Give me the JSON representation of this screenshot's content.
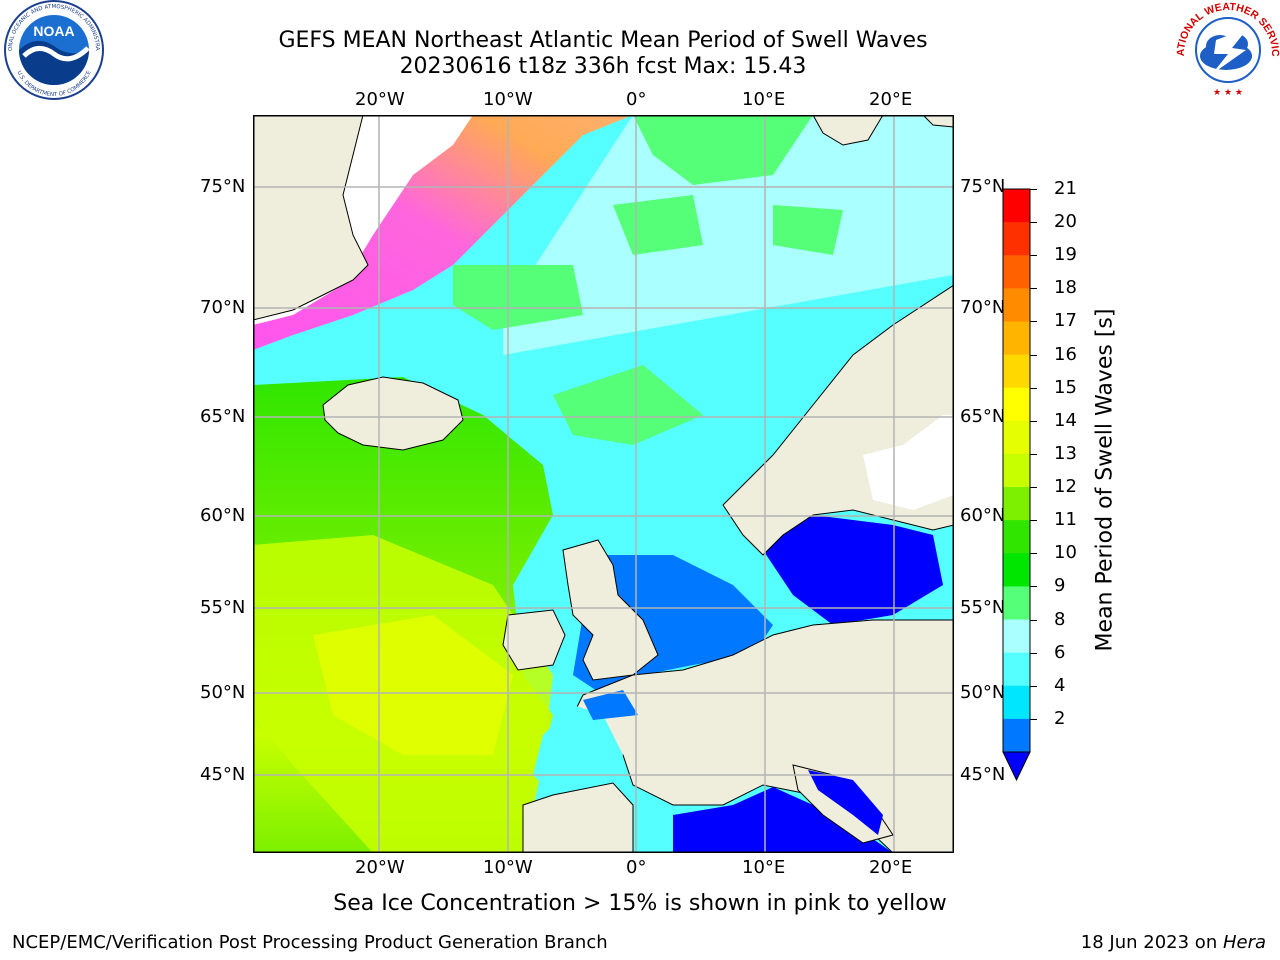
{
  "header": {
    "title_line1": "GEFS MEAN Northeast Atlantic Mean Period of Swell Waves",
    "title_line2": "20230616 t18z 336h fcst   Max: 15.43"
  },
  "logos": {
    "noaa_text": "NOAA",
    "noaa_ring": "NATIONAL OCEANIC AND ATMOSPHERIC ADMINISTRATION",
    "noaa_ring_bottom": "U.S. DEPARTMENT OF COMMERCE",
    "nws_ring": "NATIONAL WEATHER SERVICE"
  },
  "map": {
    "lon_labels": [
      "20°W",
      "10°W",
      "0°",
      "10°E",
      "20°E"
    ],
    "lat_labels_left": [
      "75°N",
      "70°N",
      "65°N",
      "60°N",
      "55°N",
      "50°N",
      "45°N"
    ],
    "lat_labels_right": [
      "75°N",
      "70°N",
      "65°N",
      "60°N",
      "55°N",
      "50°N",
      "45°N"
    ],
    "colors": {
      "land": "#efeedc",
      "open_water_white": "#ffffff",
      "ice_pink": "#ff55ee",
      "ice_orange": "#ffaa55",
      "grid": "#b4b4b4"
    }
  },
  "colorbar": {
    "label": "Mean Period of Swell Waves [s]",
    "ticks": [
      "21",
      "20",
      "19",
      "18",
      "17",
      "16",
      "15",
      "14",
      "13",
      "12",
      "11",
      "10",
      "9",
      "8",
      "6",
      "4",
      "2"
    ],
    "colors_top_to_bottom": [
      "#ff0000",
      "#ff3000",
      "#ff6000",
      "#ff8c00",
      "#ffb400",
      "#ffd800",
      "#ffff00",
      "#e6ff00",
      "#c8ff00",
      "#7cf000",
      "#30e600",
      "#00e600",
      "#55ff77",
      "#aaffff",
      "#55ffff",
      "#00e6ff",
      "#0078ff"
    ],
    "under_color": "#0000ff"
  },
  "notes": {
    "ice_note": "Sea Ice Concentration > 15% is shown in pink to yellow"
  },
  "footer": {
    "left": "NCEP/EMC/Verification Post Processing Product Generation Branch",
    "right_prefix": "18 Jun 2023 on ",
    "right_machine": "Hera"
  }
}
